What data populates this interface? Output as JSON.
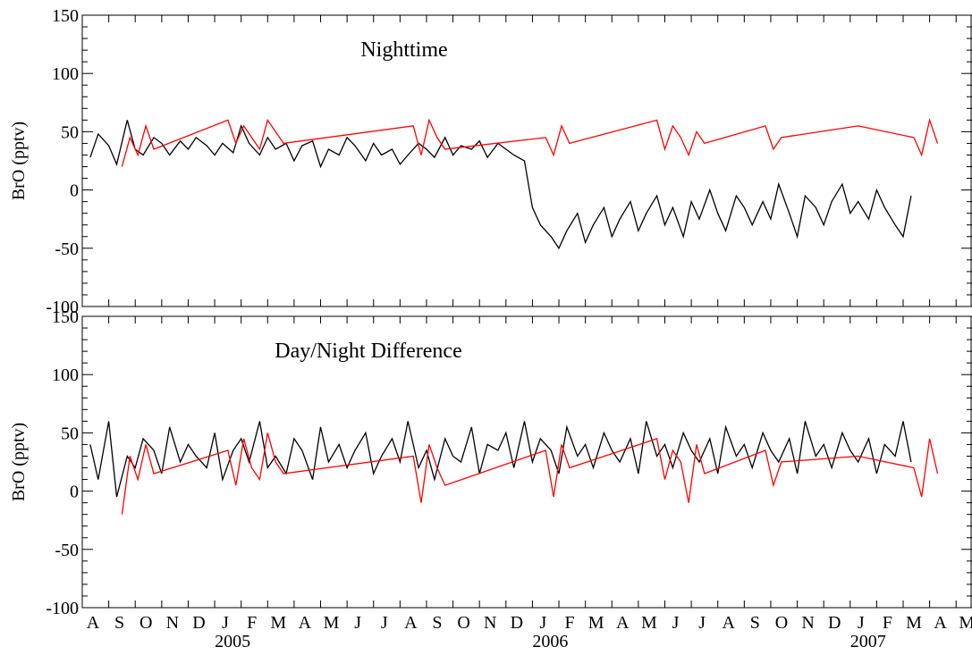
{
  "chart_data": [
    {
      "type": "line",
      "title": "Nighttime",
      "ylabel": "BrO (pptv)",
      "ylim": [
        -100,
        150
      ],
      "yticks": [
        "150",
        "100",
        "50",
        "0",
        "-50",
        "-100"
      ],
      "grid": false,
      "series": [
        {
          "color": "#000000",
          "x": [
            0.3,
            0.6,
            1.0,
            1.3,
            1.7,
            2.0,
            2.3,
            2.7,
            3.0,
            3.3,
            3.7,
            4.0,
            4.3,
            4.7,
            5.0,
            5.3,
            5.7,
            6.0,
            6.3,
            6.7,
            7.0,
            7.3,
            7.7,
            8.0,
            8.3,
            8.7,
            9.0,
            9.3,
            9.7,
            10.0,
            10.3,
            10.7,
            11.0,
            11.3,
            11.7,
            12.0,
            12.3,
            12.7,
            13.0,
            13.3,
            13.7,
            14.0,
            14.3,
            14.7,
            15.0,
            15.3,
            15.7,
            16.0,
            16.3,
            16.7,
            17.0,
            17.3,
            17.7,
            18.0,
            18.3,
            18.7,
            19.0,
            19.3,
            19.7,
            20.0,
            20.3,
            20.7,
            21.0,
            21.3,
            21.7,
            22.0,
            22.3,
            22.7,
            23.0,
            23.3,
            23.7,
            24.0,
            24.3,
            24.7,
            25.0,
            25.3,
            25.7,
            26.0,
            26.3,
            26.7,
            27.0,
            27.3,
            27.7,
            28.0,
            28.3,
            28.7,
            29.0,
            29.3,
            29.7,
            30.0,
            30.3,
            30.7,
            31.0,
            31.3
          ],
          "y": [
            28,
            48,
            38,
            22,
            60,
            35,
            30,
            45,
            40,
            30,
            42,
            35,
            45,
            38,
            30,
            40,
            32,
            55,
            40,
            30,
            45,
            35,
            40,
            25,
            38,
            42,
            20,
            35,
            30,
            45,
            38,
            25,
            40,
            30,
            35,
            22,
            30,
            40,
            35,
            28,
            45,
            30,
            38,
            35,
            42,
            28,
            40,
            35,
            30,
            25,
            -15,
            -30,
            -40,
            -50,
            -35,
            -20,
            -45,
            -30,
            -15,
            -40,
            -25,
            -10,
            -35,
            -20,
            -5,
            -30,
            -15,
            -40,
            -10,
            -25,
            0,
            -20,
            -35,
            -5,
            -15,
            -30,
            -10,
            -25,
            5,
            -20,
            -40,
            -5,
            -15,
            -30,
            -10,
            5,
            -20,
            -10,
            -25,
            0,
            -15,
            -30,
            -40,
            -5
          ]
        },
        {
          "color": "#ff0000",
          "x": [
            1.5,
            1.8,
            2.1,
            2.4,
            2.7,
            5.5,
            5.8,
            6.1,
            6.4,
            6.7,
            7.0,
            7.3,
            7.6,
            12.5,
            12.8,
            13.1,
            13.4,
            13.7,
            17.5,
            17.8,
            18.1,
            18.4,
            21.7,
            22.0,
            22.3,
            22.6,
            22.9,
            23.2,
            23.5,
            25.8,
            26.1,
            26.4,
            29.3,
            31.4,
            31.7,
            32.0,
            32.3
          ],
          "y": [
            20,
            45,
            30,
            55,
            35,
            60,
            40,
            55,
            45,
            35,
            60,
            50,
            40,
            55,
            30,
            60,
            45,
            35,
            45,
            30,
            55,
            40,
            60,
            35,
            55,
            45,
            30,
            50,
            40,
            55,
            35,
            45,
            55,
            45,
            30,
            60,
            40
          ]
        }
      ]
    },
    {
      "type": "line",
      "title": "Day/Night Difference",
      "ylabel": "BrO (pptv)",
      "ylim": [
        -100,
        150
      ],
      "yticks": [
        "150",
        "100",
        "50",
        "0",
        "-50",
        "-100"
      ],
      "grid": false,
      "series": [
        {
          "color": "#000000",
          "x": [
            0.3,
            0.6,
            1.0,
            1.3,
            1.7,
            2.0,
            2.3,
            2.7,
            3.0,
            3.3,
            3.7,
            4.0,
            4.3,
            4.7,
            5.0,
            5.3,
            5.7,
            6.0,
            6.3,
            6.7,
            7.0,
            7.3,
            7.7,
            8.0,
            8.3,
            8.7,
            9.0,
            9.3,
            9.7,
            10.0,
            10.3,
            10.7,
            11.0,
            11.3,
            11.7,
            12.0,
            12.3,
            12.7,
            13.0,
            13.3,
            13.7,
            14.0,
            14.3,
            14.7,
            15.0,
            15.3,
            15.7,
            16.0,
            16.3,
            16.7,
            17.0,
            17.3,
            17.7,
            18.0,
            18.3,
            18.7,
            19.0,
            19.3,
            19.7,
            20.0,
            20.3,
            20.7,
            21.0,
            21.3,
            21.7,
            22.0,
            22.3,
            22.7,
            23.0,
            23.3,
            23.7,
            24.0,
            24.3,
            24.7,
            25.0,
            25.3,
            25.7,
            26.0,
            26.3,
            26.7,
            27.0,
            27.3,
            27.7,
            28.0,
            28.3,
            28.7,
            29.0,
            29.3,
            29.7,
            30.0,
            30.3,
            30.7,
            31.0,
            31.3
          ],
          "y": [
            40,
            10,
            60,
            -5,
            30,
            20,
            45,
            35,
            15,
            55,
            25,
            40,
            30,
            20,
            50,
            10,
            35,
            45,
            25,
            60,
            20,
            30,
            15,
            45,
            35,
            10,
            55,
            25,
            40,
            20,
            35,
            50,
            15,
            30,
            45,
            25,
            60,
            20,
            35,
            10,
            45,
            30,
            25,
            55,
            15,
            40,
            35,
            50,
            20,
            60,
            25,
            45,
            35,
            15,
            55,
            30,
            40,
            20,
            50,
            35,
            25,
            45,
            15,
            60,
            30,
            40,
            20,
            50,
            35,
            25,
            45,
            15,
            55,
            30,
            40,
            20,
            50,
            35,
            25,
            45,
            15,
            60,
            30,
            40,
            20,
            50,
            35,
            25,
            45,
            15,
            40,
            30,
            60,
            25
          ]
        },
        {
          "color": "#ff0000",
          "x": [
            1.5,
            1.8,
            2.1,
            2.4,
            2.7,
            5.5,
            5.8,
            6.1,
            6.4,
            6.7,
            7.0,
            7.3,
            7.6,
            12.5,
            12.8,
            13.1,
            13.4,
            13.7,
            17.5,
            17.8,
            18.1,
            18.4,
            21.7,
            22.0,
            22.3,
            22.6,
            22.9,
            23.2,
            23.5,
            25.8,
            26.1,
            26.4,
            29.3,
            31.4,
            31.7,
            32.0,
            32.3
          ],
          "y": [
            -20,
            30,
            10,
            40,
            15,
            35,
            5,
            45,
            20,
            10,
            50,
            25,
            15,
            30,
            -10,
            40,
            20,
            5,
            35,
            -5,
            40,
            20,
            45,
            10,
            35,
            25,
            -10,
            40,
            15,
            35,
            5,
            25,
            30,
            20,
            -5,
            45,
            15
          ]
        }
      ]
    }
  ],
  "x_axis": {
    "month_labels": [
      "A",
      "S",
      "O",
      "N",
      "D",
      "J",
      "F",
      "M",
      "A",
      "M",
      "J",
      "J",
      "A",
      "S",
      "O",
      "N",
      "D",
      "J",
      "F",
      "M",
      "A",
      "M",
      "J",
      "J",
      "A",
      "S",
      "O",
      "N",
      "D",
      "J",
      "F",
      "M",
      "A",
      "M"
    ],
    "year_labels": [
      {
        "text": "2005",
        "month_index": 5
      },
      {
        "text": "2006",
        "month_index": 17
      },
      {
        "text": "2007",
        "month_index": 29
      }
    ]
  }
}
